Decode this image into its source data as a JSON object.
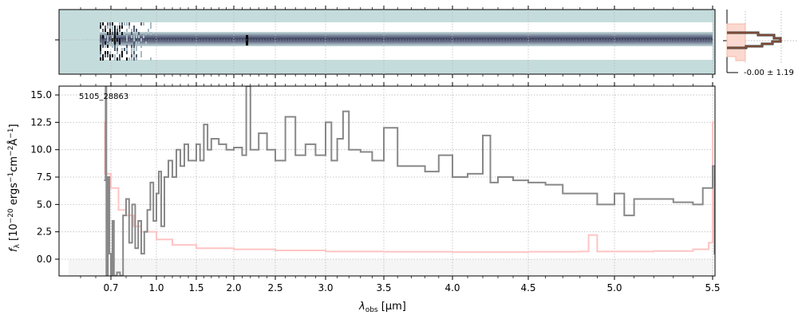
{
  "chart_data": {
    "type": "line",
    "object_label": "5105_28863",
    "xlabel_main": "λ",
    "xlabel_sub": "obs",
    "xlabel_unit": " [μm]",
    "ylabel": "f_λ [10^-20 ergs^-1 cm^-2 Å^-1]",
    "ylabel_parts": {
      "f": "f",
      "lam": "λ",
      "a": " [10",
      "e1": "−20",
      "b": " ergs",
      "e2": "−1",
      "c": "cm",
      "e3": "−2",
      "d": "Å",
      "e4": "−1",
      "e": "]"
    },
    "ylim": [
      -1.55,
      15.8
    ],
    "xticks": [
      0.7,
      1.0,
      1.5,
      2.0,
      2.5,
      3.0,
      3.5,
      4.0,
      4.5,
      5.0,
      5.5
    ],
    "xtick_labels": [
      "0.7",
      "1.0",
      "1.5",
      "2.0",
      "2.5",
      "3.0",
      "3.5",
      "4.0",
      "4.5",
      "5.0",
      "5.5"
    ],
    "yticks": [
      0.0,
      2.5,
      5.0,
      7.5,
      10.0,
      12.5,
      15.0
    ],
    "ytick_labels": [
      "0.0",
      "2.5",
      "5.0",
      "7.5",
      "10.0",
      "12.5",
      "15.0"
    ],
    "grid": true,
    "series": [
      {
        "name": "flux",
        "color": "#888888",
        "x": [
          0.655,
          0.66,
          0.665,
          0.67,
          0.68,
          0.69,
          0.7,
          0.71,
          0.72,
          0.74,
          0.76,
          0.78,
          0.8,
          0.82,
          0.84,
          0.86,
          0.88,
          0.9,
          0.92,
          0.94,
          0.96,
          0.98,
          1.0,
          1.03,
          1.06,
          1.1,
          1.15,
          1.2,
          1.25,
          1.3,
          1.35,
          1.4,
          1.5,
          1.55,
          1.6,
          1.65,
          1.7,
          1.8,
          1.9,
          2.0,
          2.1,
          2.15,
          2.2,
          2.3,
          2.4,
          2.5,
          2.6,
          2.7,
          2.8,
          2.9,
          3.0,
          3.05,
          3.1,
          3.15,
          3.2,
          3.3,
          3.4,
          3.5,
          3.6,
          3.7,
          3.8,
          3.9,
          4.0,
          4.1,
          4.2,
          4.25,
          4.3,
          4.4,
          4.5,
          4.6,
          4.7,
          4.8,
          4.9,
          5.0,
          5.05,
          5.1,
          5.2,
          5.3,
          5.4,
          5.45,
          5.5,
          5.51
        ],
        "y": [
          7.2,
          7.2,
          15.8,
          -1.5,
          7.5,
          0.5,
          -1.5,
          3.5,
          -1.5,
          -1.2,
          -1.5,
          4.0,
          5.5,
          1.5,
          5.0,
          1.0,
          3.5,
          0.5,
          2.5,
          4.5,
          7.0,
          3.5,
          6.0,
          8.0,
          3.0,
          7.5,
          9.0,
          7.5,
          10.0,
          8.5,
          10.5,
          9.0,
          10.5,
          9.0,
          12.3,
          10.0,
          11.0,
          10.5,
          10.0,
          10.2,
          9.5,
          15.8,
          10.0,
          11.5,
          10.0,
          9.0,
          13.0,
          9.5,
          10.5,
          9.5,
          12.5,
          9.0,
          11.0,
          13.5,
          10.0,
          9.8,
          9.0,
          12.0,
          8.5,
          8.5,
          8.0,
          9.5,
          7.5,
          7.8,
          11.3,
          7.0,
          7.5,
          7.2,
          7.0,
          6.8,
          6.0,
          6.0,
          5.0,
          6.0,
          4.0,
          5.5,
          5.5,
          5.2,
          5.0,
          6.5,
          8.5,
          0.5
        ]
      },
      {
        "name": "error",
        "color": "#ffc4c4",
        "x": [
          0.65,
          0.66,
          0.7,
          0.75,
          0.8,
          0.85,
          0.9,
          1.0,
          1.2,
          1.5,
          2.0,
          2.5,
          3.0,
          3.5,
          4.0,
          4.5,
          4.8,
          4.85,
          4.9,
          5.2,
          5.4,
          5.48,
          5.5
        ],
        "y": [
          12.5,
          7.8,
          6.5,
          4.5,
          4.0,
          3.0,
          2.5,
          1.8,
          1.3,
          1.0,
          0.9,
          0.8,
          0.7,
          0.68,
          0.65,
          0.68,
          0.7,
          2.2,
          0.7,
          0.75,
          0.9,
          1.5,
          12.5
        ]
      }
    ],
    "inset": {
      "label": "-0.00 ± 1.19",
      "mean": -0.0,
      "std": 1.19
    }
  }
}
